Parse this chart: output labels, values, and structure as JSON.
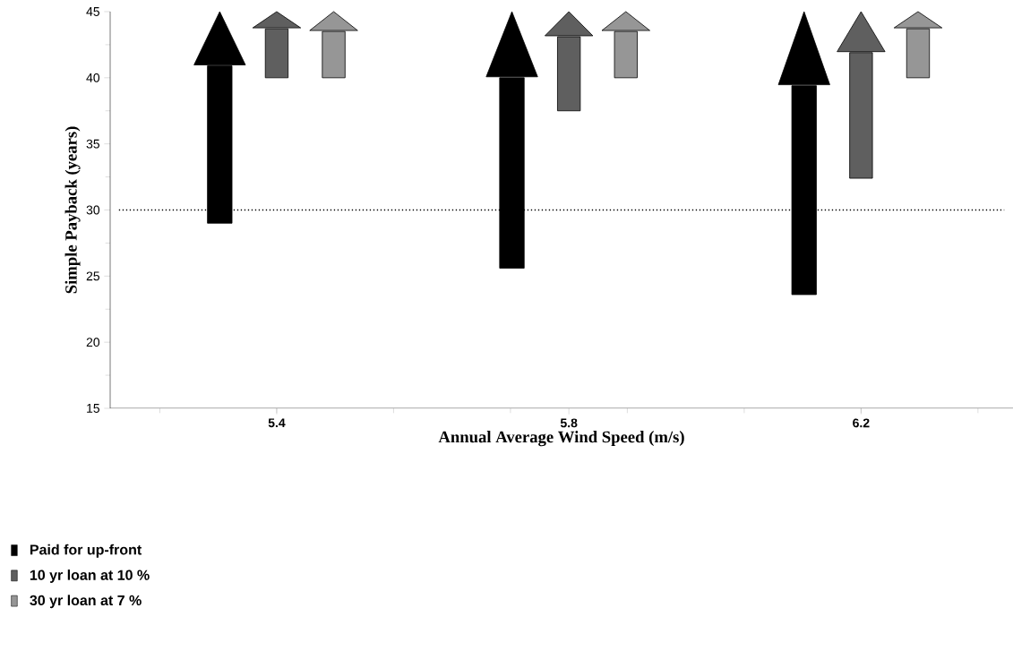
{
  "chart_data": {
    "type": "bar",
    "xlabel": "Annual Average Wind Speed (m/s)",
    "ylabel": "Simple Payback (years)",
    "categories": [
      "5.4",
      "5.8",
      "6.2"
    ],
    "series": [
      {
        "name": "Paid for up-front",
        "color": "#000000",
        "base": [
          29.0,
          25.6,
          23.6
        ],
        "values": [
          11.9,
          14.4,
          15.8
        ]
      },
      {
        "name": "10 yr loan at 10 %",
        "color": "#5f5f5f",
        "base": [
          40.0,
          37.5,
          32.4
        ],
        "values": [
          3.7,
          5.6,
          9.5
        ]
      },
      {
        "name": "30 yr loan at 7 %",
        "color": "#969696",
        "base": [
          40.0,
          40.0,
          40.0
        ],
        "values": [
          3.5,
          3.5,
          3.7
        ]
      }
    ],
    "ylim": [
      15,
      45
    ],
    "yticks": [
      15,
      20,
      25,
      30,
      35,
      40,
      45
    ],
    "ref_lines": [
      {
        "axis": "y",
        "value": 30,
        "line_style": "dotted"
      }
    ],
    "legend": "bottom left",
    "grid": false
  }
}
